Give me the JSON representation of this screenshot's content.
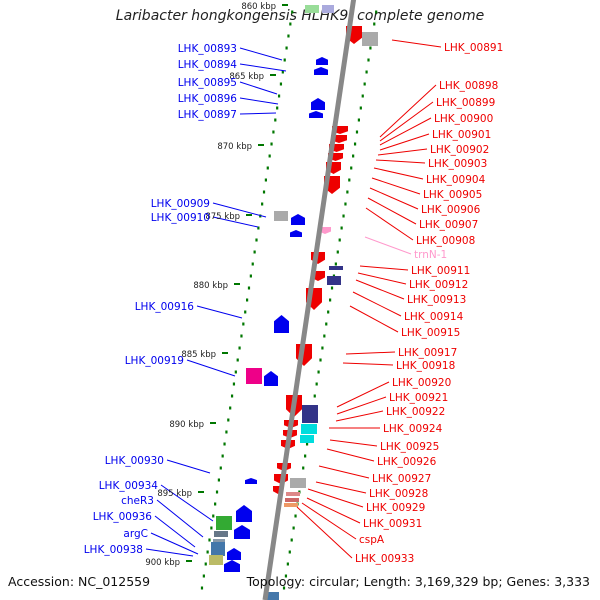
{
  "title": "Laribacter hongkongensis HLHK9, complete genome",
  "accession": "Accession: NC_012559",
  "topology": "Topology: circular; Length: 3,169,329 bp; Genes: 3,333",
  "colors": {
    "forward_gene": "#0000ee",
    "reverse_gene": "#ee0000",
    "trna": "#ff99cc",
    "tick": "#007700",
    "axis": "#888888",
    "domain_navy": "#333388",
    "domain_cyan": "#00dddd",
    "domain_green": "#33aa33",
    "domain_magenta": "#ee0088",
    "domain_grey": "#aaaaaa",
    "domain_steel": "#4477aa",
    "domain_khaki": "#bbbb66"
  },
  "scale_labels": [
    "860 kbp",
    "865 kbp",
    "870 kbp",
    "875 kbp",
    "880 kbp",
    "885 kbp",
    "890 kbp",
    "895 kbp",
    "900 kbp"
  ],
  "left_labels": [
    "LHK_00893",
    "LHK_00894",
    "LHK_00895",
    "LHK_00896",
    "LHK_00897",
    "LHK_00909",
    "LHK_00910",
    "LHK_00916",
    "LHK_00919",
    "LHK_00930",
    "LHK_00934",
    "cheR3",
    "LHK_00936",
    "argC",
    "LHK_00938"
  ],
  "right_labels": [
    "LHK_00891",
    "LHK_00898",
    "LHK_00899",
    "LHK_00900",
    "LHK_00901",
    "LHK_00902",
    "LHK_00903",
    "LHK_00904",
    "LHK_00905",
    "LHK_00906",
    "LHK_00907",
    "LHK_00908",
    "trnN-1",
    "LHK_00911",
    "LHK_00912",
    "LHK_00913",
    "LHK_00914",
    "LHK_00915",
    "LHK_00917",
    "LHK_00918",
    "LHK_00920",
    "LHK_00921",
    "LHK_00922",
    "LHK_00924",
    "LHK_00925",
    "LHK_00926",
    "LHK_00927",
    "LHK_00928",
    "LHK_00929",
    "LHK_00931",
    "cspA",
    "LHK_00933"
  ]
}
